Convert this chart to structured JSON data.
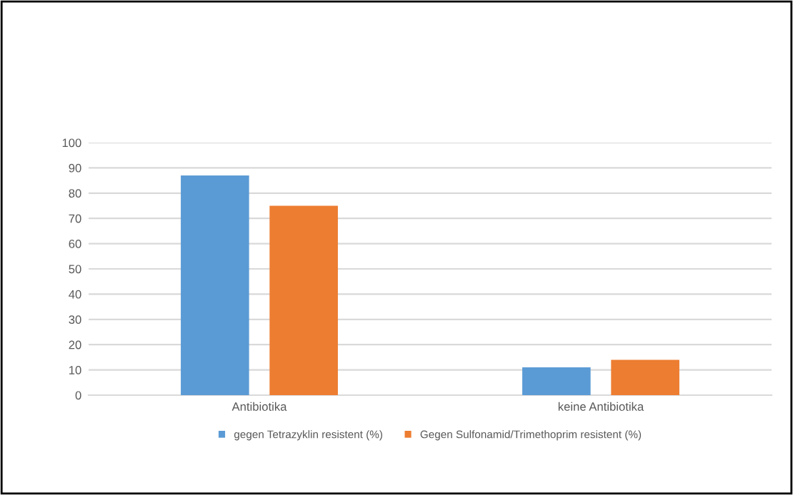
{
  "chart_data": {
    "type": "bar",
    "categories": [
      "Antibiotika",
      "keine Antibiotika"
    ],
    "series": [
      {
        "name": "gegen Tetrazyklin resistent (%)",
        "color": "#5b9bd5",
        "values": [
          87,
          11
        ]
      },
      {
        "name": "Gegen Sulfonamid/Trimethoprim resistent (%)",
        "color": "#ed7d31",
        "values": [
          75,
          14
        ]
      }
    ],
    "ylim": [
      0,
      100
    ],
    "yticks": [
      0,
      10,
      20,
      30,
      40,
      50,
      60,
      70,
      80,
      90,
      100
    ],
    "grid": "y",
    "legend": "bottom"
  }
}
